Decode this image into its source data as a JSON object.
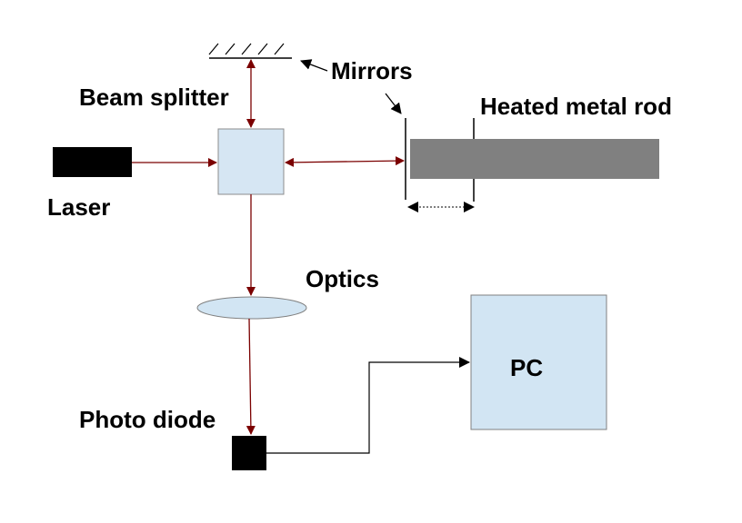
{
  "labels": {
    "mirrors": "Mirrors",
    "beam_splitter": "Beam splitter",
    "heated_metal_rod": "Heated metal rod",
    "laser": "Laser",
    "optics": "Optics",
    "photo_diode": "Photo diode",
    "pc": "PC"
  },
  "colors": {
    "beam": "#7b0000",
    "splitter_fill": "#d6e6f3",
    "splitter_stroke": "#8c8c8c",
    "rod_fill": "#808080",
    "pc_fill": "#d2e5f3",
    "lens_fill": "#d2e5f3",
    "laser_fill": "#000000",
    "photodiode_fill": "#000000"
  }
}
